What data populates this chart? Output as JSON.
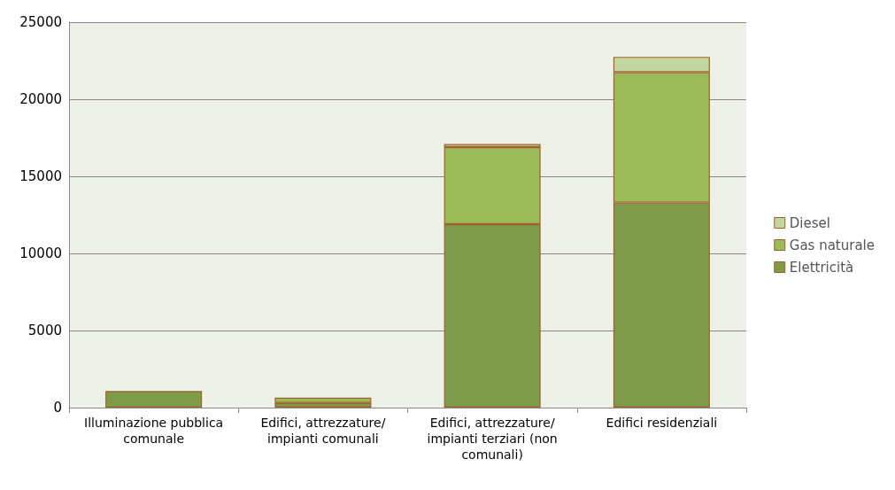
{
  "chart_data": {
    "type": "bar",
    "stacked": true,
    "categories": [
      "Illuminazione pubblica\ncomunale",
      "Edifici, attrezzature/\nimpianti comunali",
      "Edifici, attrezzature/\nimpianti terziari (non\ncomunali)",
      "Edifici residenziali"
    ],
    "series": [
      {
        "name": "Elettricità",
        "color": "#7f9a48",
        "values": [
          1080,
          300,
          11900,
          13300
        ]
      },
      {
        "name": "Gas naturale",
        "color": "#9bbb59",
        "values": [
          null,
          350,
          5000,
          8450
        ]
      },
      {
        "name": "Diesel",
        "color": "#c4d6a0",
        "values": [
          null,
          null,
          200,
          1000
        ]
      }
    ],
    "ylim": [
      0,
      25000
    ],
    "yticks": [
      0,
      5000,
      10000,
      15000,
      20000,
      25000
    ],
    "grid": "y",
    "legend": "right"
  }
}
